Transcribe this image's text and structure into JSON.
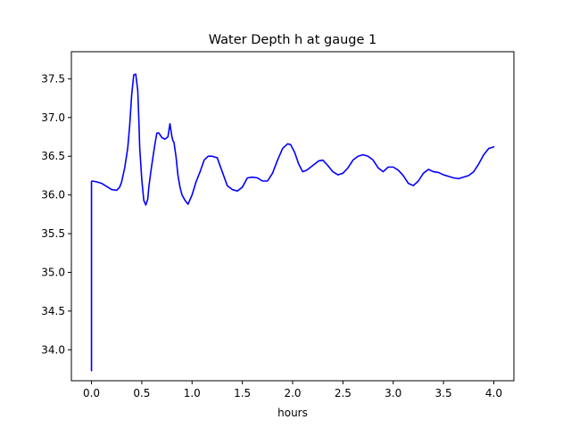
{
  "chart_data": {
    "type": "line",
    "title": "Water Depth h at gauge 1",
    "xlabel": "hours",
    "ylabel": "",
    "xlim": [
      -0.2,
      4.2
    ],
    "ylim": [
      33.6,
      37.85
    ],
    "xticks": [
      0.0,
      0.5,
      1.0,
      1.5,
      2.0,
      2.5,
      3.0,
      3.5,
      4.0
    ],
    "xtick_labels": [
      "0.0",
      "0.5",
      "1.0",
      "1.5",
      "2.0",
      "2.5",
      "3.0",
      "3.5",
      "4.0"
    ],
    "yticks": [
      34.0,
      34.5,
      35.0,
      35.5,
      36.0,
      36.5,
      37.0,
      37.5
    ],
    "ytick_labels": [
      "34.0",
      "34.5",
      "35.0",
      "35.5",
      "36.0",
      "36.5",
      "37.0",
      "37.5"
    ],
    "grid": false,
    "series": [
      {
        "color": "#0000ff",
        "x": [
          0.0,
          0.0,
          0.005,
          0.05,
          0.1,
          0.15,
          0.2,
          0.25,
          0.28,
          0.3,
          0.33,
          0.36,
          0.38,
          0.4,
          0.42,
          0.44,
          0.46,
          0.47,
          0.48,
          0.5,
          0.52,
          0.54,
          0.56,
          0.57,
          0.59,
          0.61,
          0.63,
          0.65,
          0.67,
          0.7,
          0.73,
          0.76,
          0.78,
          0.8,
          0.81,
          0.82,
          0.84,
          0.86,
          0.88,
          0.9,
          0.93,
          0.96,
          1.0,
          1.04,
          1.08,
          1.12,
          1.16,
          1.2,
          1.25,
          1.3,
          1.35,
          1.4,
          1.45,
          1.5,
          1.55,
          1.6,
          1.65,
          1.7,
          1.75,
          1.8,
          1.85,
          1.9,
          1.95,
          1.98,
          2.02,
          2.06,
          2.1,
          2.14,
          2.2,
          2.26,
          2.3,
          2.35,
          2.4,
          2.45,
          2.5,
          2.55,
          2.6,
          2.65,
          2.7,
          2.75,
          2.8,
          2.85,
          2.9,
          2.95,
          3.0,
          3.05,
          3.1,
          3.15,
          3.2,
          3.25,
          3.3,
          3.35,
          3.4,
          3.45,
          3.5,
          3.55,
          3.6,
          3.65,
          3.7,
          3.75,
          3.8,
          3.85,
          3.9,
          3.95,
          4.0
        ],
        "y": [
          33.73,
          36.17,
          36.18,
          36.17,
          36.15,
          36.11,
          36.07,
          36.06,
          36.1,
          36.17,
          36.35,
          36.6,
          36.9,
          37.3,
          37.55,
          37.56,
          37.35,
          37.0,
          36.6,
          36.2,
          35.93,
          35.87,
          35.95,
          36.1,
          36.3,
          36.48,
          36.65,
          36.8,
          36.8,
          36.74,
          36.72,
          36.75,
          36.92,
          36.75,
          36.7,
          36.68,
          36.5,
          36.25,
          36.1,
          36.0,
          35.93,
          35.88,
          36.0,
          36.17,
          36.3,
          36.45,
          36.5,
          36.5,
          36.48,
          36.3,
          36.12,
          36.07,
          36.05,
          36.1,
          36.22,
          36.23,
          36.22,
          36.18,
          36.18,
          36.28,
          36.45,
          36.6,
          36.66,
          36.65,
          36.55,
          36.4,
          36.3,
          36.32,
          36.38,
          36.44,
          36.45,
          36.38,
          36.3,
          36.26,
          36.28,
          36.35,
          36.45,
          36.5,
          36.52,
          36.5,
          36.45,
          36.35,
          36.3,
          36.36,
          36.36,
          36.32,
          36.25,
          36.15,
          36.12,
          36.18,
          36.28,
          36.33,
          36.3,
          36.29,
          36.26,
          36.24,
          36.22,
          36.21,
          36.23,
          36.25,
          36.3,
          36.4,
          36.52,
          36.6,
          36.62
        ]
      }
    ]
  }
}
